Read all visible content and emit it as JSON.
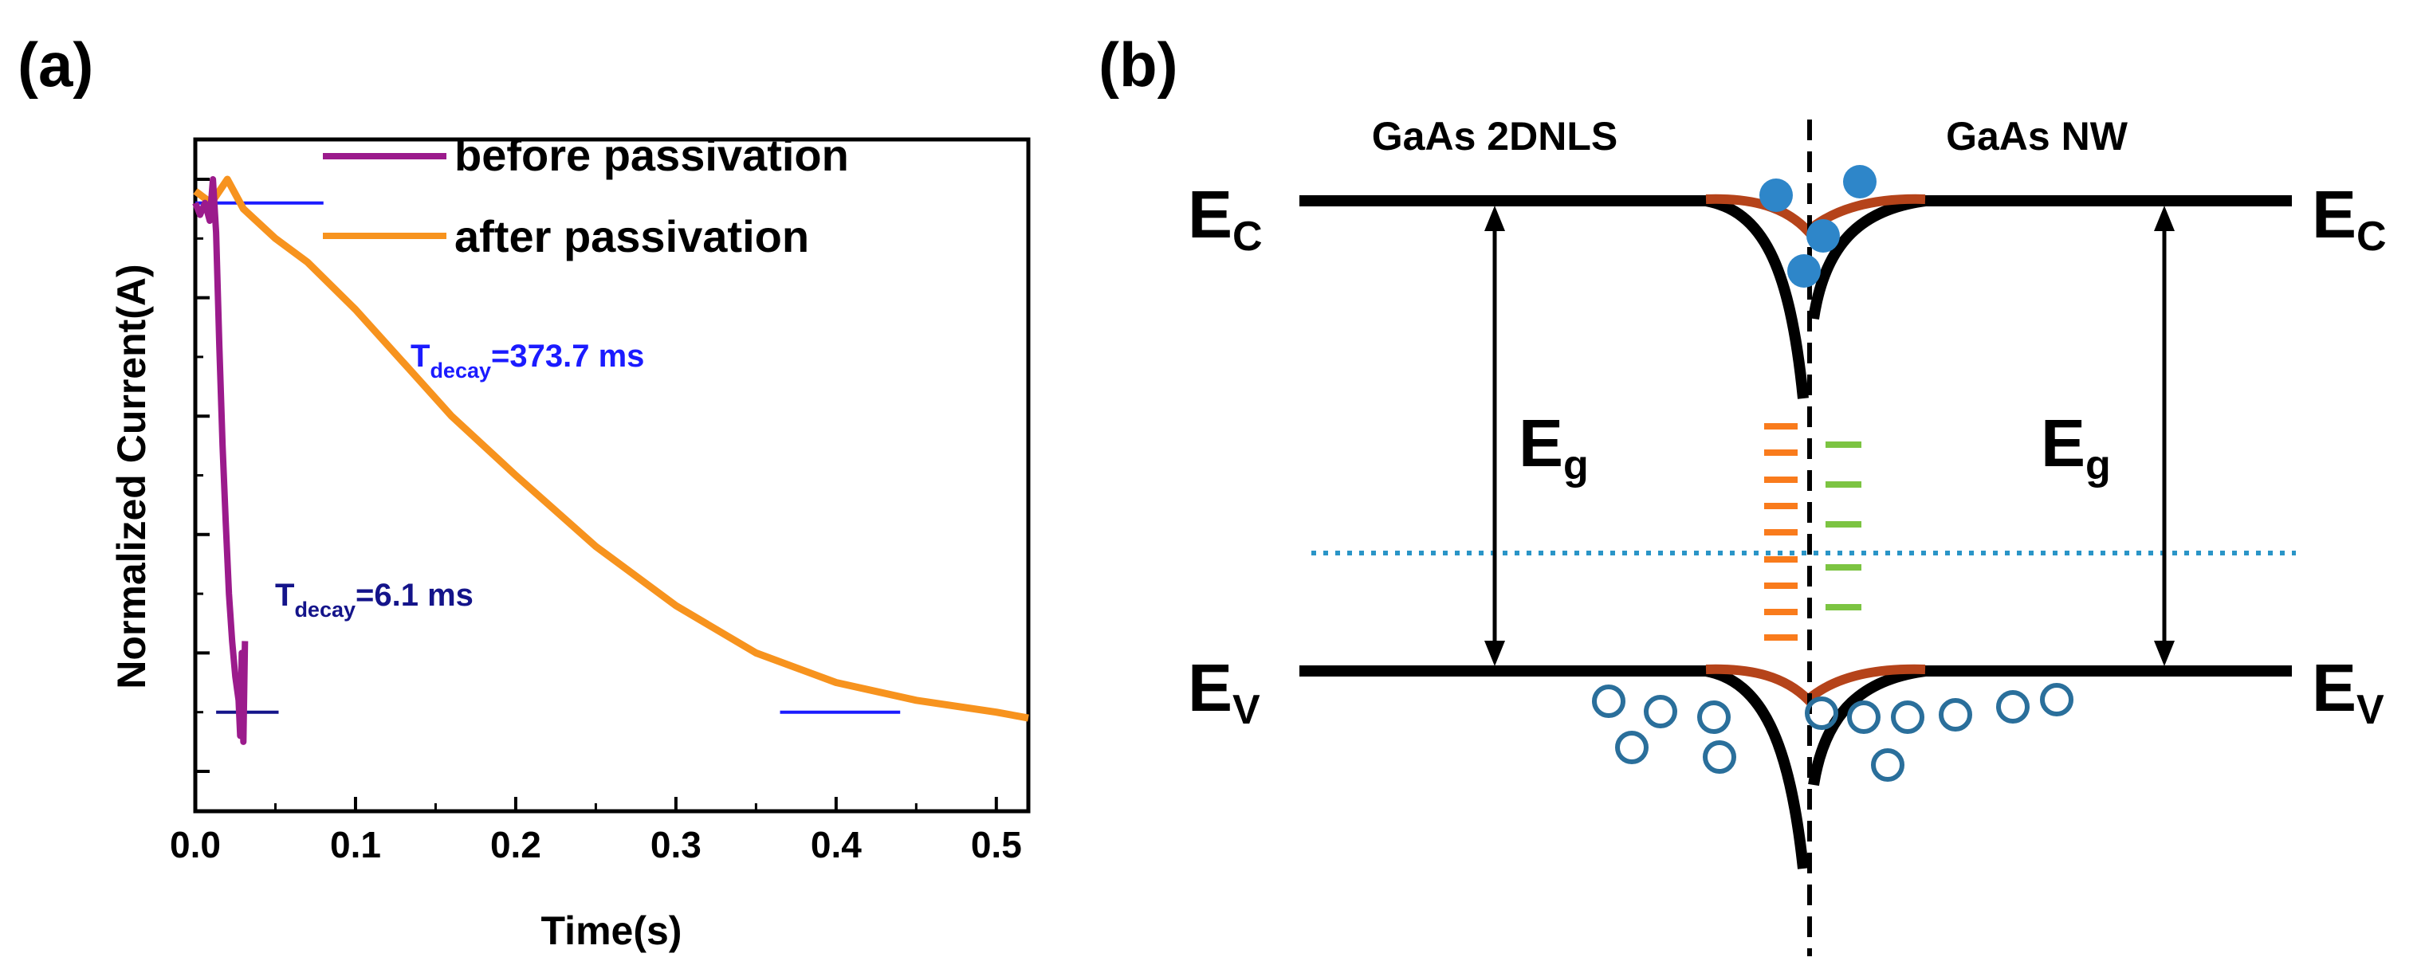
{
  "panels": {
    "a": {
      "label": "(a)"
    },
    "b": {
      "label": "(b)"
    }
  },
  "chart_data": {
    "type": "line",
    "title": "",
    "xlabel": "Time(s)",
    "ylabel": "Normalized Current(A)",
    "xlim": [
      0.0,
      0.52
    ],
    "ylim": [
      0.0,
      1.0
    ],
    "x_ticks": [
      0.0,
      0.1,
      0.2,
      0.3,
      0.4,
      0.5
    ],
    "x_tick_labels": [
      "0.0",
      "0.1",
      "0.2",
      "0.3",
      "0.4",
      "0.5"
    ],
    "legend": {
      "position": "top-right",
      "entries": [
        "before passivation",
        "after passivation"
      ]
    },
    "series": [
      {
        "name": "before passivation",
        "color": "#9b1b8c",
        "x": [
          0.0,
          0.003,
          0.006,
          0.009,
          0.011,
          0.013,
          0.015,
          0.017,
          0.019,
          0.021,
          0.023,
          0.025,
          0.027,
          0.028,
          0.029,
          0.03,
          0.031
        ],
        "y": [
          0.96,
          0.94,
          0.96,
          0.93,
          1.0,
          0.91,
          0.72,
          0.55,
          0.42,
          0.3,
          0.22,
          0.16,
          0.12,
          0.06,
          0.2,
          0.05,
          0.22
        ]
      },
      {
        "name": "after passivation",
        "color": "#f7931e",
        "x": [
          0.0,
          0.01,
          0.02,
          0.03,
          0.05,
          0.07,
          0.1,
          0.13,
          0.16,
          0.2,
          0.25,
          0.3,
          0.35,
          0.4,
          0.45,
          0.5,
          0.52
        ],
        "y": [
          0.98,
          0.96,
          1.0,
          0.95,
          0.9,
          0.86,
          0.78,
          0.69,
          0.6,
          0.5,
          0.38,
          0.28,
          0.2,
          0.15,
          0.12,
          0.1,
          0.09
        ]
      }
    ],
    "annotations": [
      {
        "text_main": "T",
        "text_sub": "decay",
        "text_value": "=373.7 ms",
        "color": "#1b1bff"
      },
      {
        "text_main": "T",
        "text_sub": "decay",
        "text_value": "=6.1 ms",
        "color": "#14148a"
      }
    ],
    "reference_lines": [
      {
        "color": "#1b1bff",
        "x": [
          0.0,
          0.08
        ],
        "y": 0.96
      },
      {
        "color": "#14148a",
        "x": [
          0.013,
          0.052
        ],
        "y": 0.1
      },
      {
        "color": "#1b1bff",
        "x": [
          0.365,
          0.44
        ],
        "y": 0.1
      }
    ]
  },
  "diagram": {
    "left_material": "GaAs 2DNLS",
    "right_material": "GaAs NW",
    "ec_main": "E",
    "ec_sub": "C",
    "ev_main": "E",
    "ev_sub": "V",
    "eg_main": "E",
    "eg_sub": "g",
    "colors": {
      "band": "#000000",
      "bend": "#b5431a",
      "fermi": "#2a95c7",
      "electron": "#2e86c9",
      "hole": "#2a6f9b",
      "trap_left": "#f97b1c",
      "trap_right": "#7cc442"
    }
  }
}
